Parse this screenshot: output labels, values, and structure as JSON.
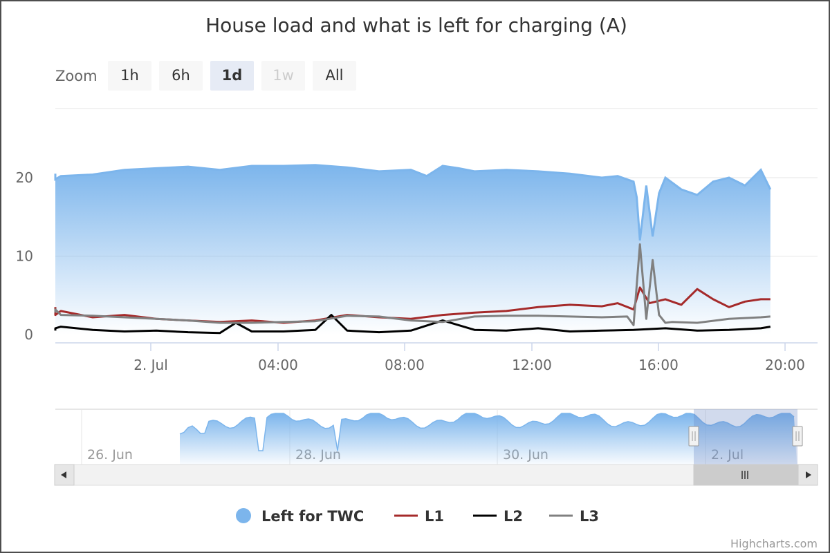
{
  "chart_data": {
    "type": "area",
    "title": "House load and what is left for charging (A)",
    "zoom": {
      "label": "Zoom",
      "buttons": [
        {
          "label": "1h",
          "state": "normal"
        },
        {
          "label": "6h",
          "state": "normal"
        },
        {
          "label": "1d",
          "state": "selected"
        },
        {
          "label": "1w",
          "state": "disabled"
        },
        {
          "label": "All",
          "state": "normal"
        }
      ]
    },
    "x_ticks": [
      "2. Jul",
      "04:00",
      "08:00",
      "12:00",
      "16:00",
      "20:00"
    ],
    "y_ticks": [
      "0",
      "10",
      "20"
    ],
    "ylim": [
      0,
      24
    ],
    "grid": true,
    "legend_position": "bottom",
    "series": [
      {
        "name": "Left for TWC",
        "kind": "area",
        "color": "#7cb5ec",
        "x": [
          -3,
          -2,
          -1,
          0,
          1,
          2,
          3,
          4,
          5,
          6,
          7,
          8,
          9,
          10,
          10.5,
          11,
          11.5,
          12,
          13,
          14,
          15,
          16,
          16.5,
          17,
          17.1,
          17.2,
          17.4,
          17.6,
          17.8,
          18,
          18.5,
          19,
          19.5,
          20,
          20.5,
          21,
          21.3
        ],
        "values": [
          20.5,
          19.8,
          20.2,
          20.4,
          21.0,
          21.2,
          21.4,
          21.0,
          21.5,
          21.5,
          21.6,
          21.3,
          20.8,
          21.0,
          20.2,
          21.5,
          21.2,
          20.8,
          21.0,
          20.8,
          20.5,
          20.0,
          20.2,
          19.5,
          17.5,
          12.0,
          19.0,
          12.5,
          18.0,
          20.0,
          18.5,
          17.8,
          19.5,
          20.0,
          19.0,
          21.0,
          18.5
        ]
      },
      {
        "name": "L1",
        "kind": "line",
        "color": "#a52a2a",
        "x": [
          -3,
          -2,
          -1,
          0,
          1,
          2,
          3,
          4,
          5,
          6,
          7,
          8,
          9,
          10,
          11,
          12,
          13,
          14,
          15,
          16,
          16.5,
          17,
          17.2,
          17.5,
          18,
          18.5,
          19,
          19.5,
          20,
          20.5,
          21,
          21.3
        ],
        "values": [
          3.5,
          2.5,
          3.0,
          2.2,
          2.5,
          2.0,
          1.8,
          1.6,
          1.8,
          1.5,
          1.8,
          2.5,
          2.2,
          2.0,
          2.5,
          2.8,
          3.0,
          3.5,
          3.8,
          3.6,
          4.0,
          3.2,
          6.0,
          4.0,
          4.5,
          3.8,
          5.8,
          4.5,
          3.5,
          4.2,
          4.5,
          4.5
        ]
      },
      {
        "name": "L2",
        "kind": "line",
        "color": "#000000",
        "x": [
          -3,
          -2,
          -1,
          0,
          1,
          2,
          3,
          4,
          4.5,
          5,
          6,
          7,
          7.5,
          8,
          9,
          10,
          11,
          12,
          13,
          14,
          15,
          16,
          17,
          18,
          19,
          20,
          21,
          21.3
        ],
        "values": [
          0.5,
          0.8,
          1.0,
          0.6,
          0.4,
          0.5,
          0.3,
          0.2,
          1.5,
          0.4,
          0.4,
          0.6,
          2.5,
          0.5,
          0.3,
          0.5,
          1.8,
          0.6,
          0.5,
          0.8,
          0.4,
          0.5,
          0.6,
          0.8,
          0.5,
          0.6,
          0.8,
          1.0
        ]
      },
      {
        "name": "L3",
        "kind": "line",
        "color": "#808080",
        "x": [
          -3,
          -2,
          -1,
          0,
          1,
          2,
          3,
          4,
          5,
          6,
          7,
          8,
          9,
          10,
          11,
          12,
          13,
          14,
          15,
          16,
          16.8,
          17.0,
          17.2,
          17.4,
          17.6,
          17.8,
          18.0,
          18.2,
          19,
          20,
          21,
          21.3
        ],
        "values": [
          2.8,
          3.2,
          2.5,
          2.4,
          2.2,
          2.0,
          1.8,
          1.5,
          1.5,
          1.6,
          1.7,
          2.4,
          2.3,
          1.8,
          1.6,
          2.3,
          2.4,
          2.4,
          2.3,
          2.2,
          2.3,
          1.2,
          11.5,
          2.0,
          9.5,
          2.5,
          1.5,
          1.6,
          1.5,
          2.0,
          2.2,
          2.3
        ]
      }
    ],
    "navigator": {
      "x_ticks": [
        "26. Jun",
        "28. Jun",
        "30. Jun",
        "2. Jul"
      ]
    },
    "credits": "Highcharts.com"
  }
}
